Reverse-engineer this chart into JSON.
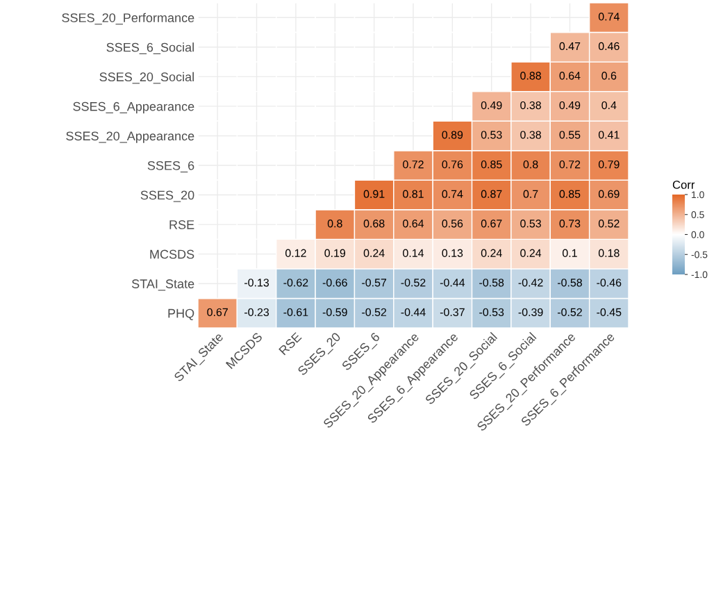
{
  "chart_data": {
    "type": "heatmap",
    "categories": [
      "STAI_State",
      "MCSDS",
      "RSE",
      "SSES_20",
      "SSES_6",
      "SSES_20_Appearance",
      "SSES_6_Appearance",
      "SSES_20_Social",
      "SSES_6_Social",
      "SSES_20_Performance",
      "SSES_6_Performance"
    ],
    "y_categories": [
      "SSES_20_Performance",
      "SSES_6_Social",
      "SSES_20_Social",
      "SSES_6_Appearance",
      "SSES_20_Appearance",
      "SSES_6",
      "SSES_20",
      "RSE",
      "MCSDS",
      "STAI_State",
      "PHQ"
    ],
    "cells": [
      [
        null,
        null,
        null,
        null,
        null,
        null,
        null,
        null,
        null,
        null,
        0.74
      ],
      [
        null,
        null,
        null,
        null,
        null,
        null,
        null,
        null,
        null,
        0.47,
        0.46
      ],
      [
        null,
        null,
        null,
        null,
        null,
        null,
        null,
        null,
        0.88,
        0.64,
        0.6
      ],
      [
        null,
        null,
        null,
        null,
        null,
        null,
        null,
        0.49,
        0.38,
        0.49,
        0.4
      ],
      [
        null,
        null,
        null,
        null,
        null,
        null,
        0.89,
        0.53,
        0.38,
        0.55,
        0.41
      ],
      [
        null,
        null,
        null,
        null,
        null,
        0.72,
        0.76,
        0.85,
        0.8,
        0.72,
        0.79
      ],
      [
        null,
        null,
        null,
        null,
        0.91,
        0.81,
        0.74,
        0.87,
        0.7,
        0.85,
        0.69
      ],
      [
        null,
        null,
        null,
        0.8,
        0.68,
        0.64,
        0.56,
        0.67,
        0.53,
        0.73,
        0.52
      ],
      [
        null,
        null,
        0.12,
        0.19,
        0.24,
        0.14,
        0.13,
        0.24,
        0.24,
        0.1,
        0.18
      ],
      [
        null,
        -0.13,
        -0.62,
        -0.66,
        -0.57,
        -0.52,
        -0.44,
        -0.58,
        -0.42,
        -0.58,
        -0.46
      ],
      [
        0.67,
        -0.23,
        -0.61,
        -0.59,
        -0.52,
        -0.44,
        -0.37,
        -0.53,
        -0.39,
        -0.52,
        -0.45
      ]
    ],
    "colors": [
      "#6d9ec1",
      "#ffffff",
      "#e46726"
    ],
    "clabel": "Corr",
    "clim": [
      -1,
      1
    ],
    "cticks": [
      {
        "value": -1,
        "label": "-1.0"
      },
      {
        "value": -0.5,
        "label": "-0.5"
      },
      {
        "value": 0,
        "label": "0.0"
      },
      {
        "value": 0.5,
        "label": "0.5"
      },
      {
        "value": 1,
        "label": "1.0"
      }
    ],
    "data_labels": true,
    "grid": true
  }
}
